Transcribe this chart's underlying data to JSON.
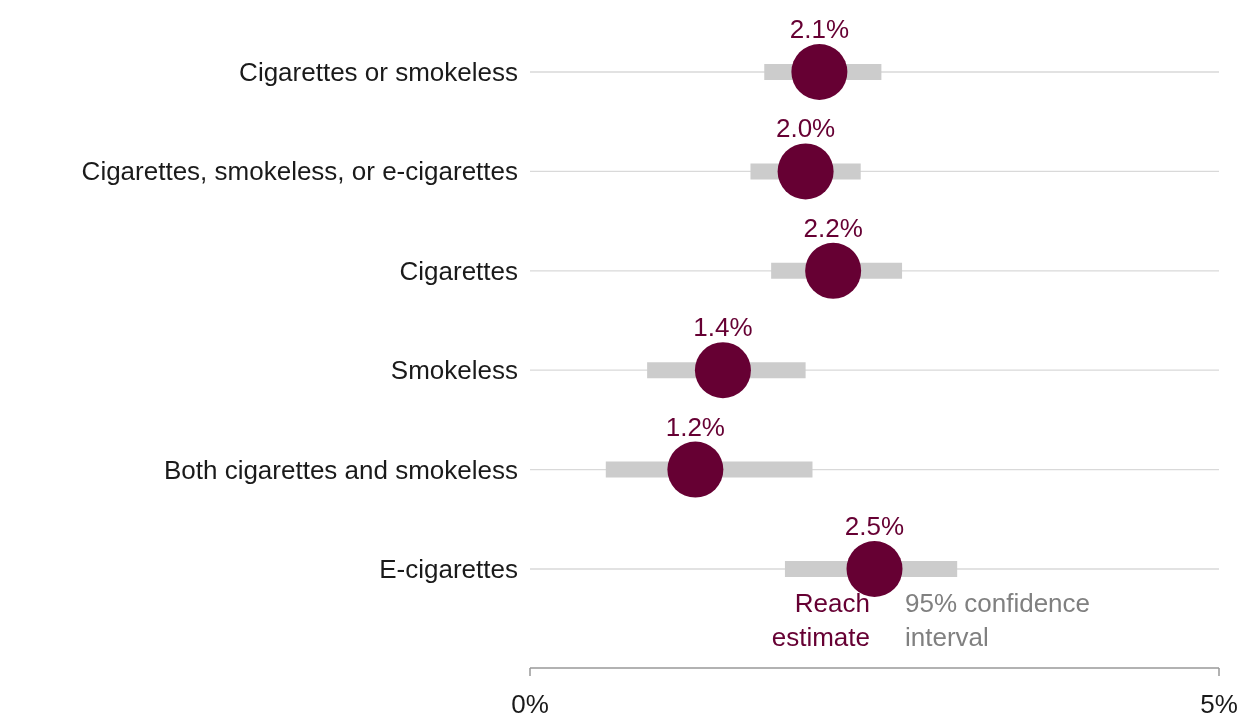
{
  "chart_data": {
    "type": "scatter",
    "orientation": "horizontal",
    "categories": [
      "Cigarettes or smokeless",
      "Cigarettes, smokeless, or e-cigarettes",
      "Cigarettes",
      "Smokeless",
      "Both cigarettes and smokeless",
      "E-cigarettes"
    ],
    "series": [
      {
        "name": "Reach estimate",
        "color": "#660033",
        "values": [
          2.1,
          2.0,
          2.2,
          1.4,
          1.2,
          2.5
        ],
        "value_labels": [
          "2.1%",
          "2.0%",
          "2.2%",
          "1.4%",
          "1.2%",
          "2.5%"
        ],
        "errors": [
          [
            1.7,
            2.55
          ],
          [
            1.6,
            2.4
          ],
          [
            1.75,
            2.7
          ],
          [
            0.85,
            2.0
          ],
          [
            0.55,
            2.05
          ],
          [
            1.85,
            3.1
          ]
        ]
      }
    ],
    "xlim": [
      0,
      5
    ],
    "xticks": [
      {
        "value": 0,
        "label": "0%"
      },
      {
        "value": 5,
        "label": "5%"
      }
    ],
    "grid": "y",
    "marker": "circle",
    "legend": "bottom",
    "annotations": [
      "95% confidence interval"
    ]
  }
}
